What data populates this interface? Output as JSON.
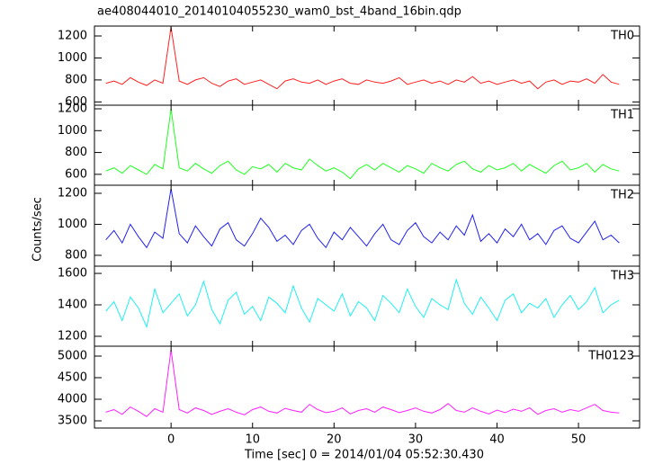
{
  "title": "ae408044010_20140104055230_wam0_bst_4band_16bin.qdp",
  "ylabel": "Counts/sec",
  "xlabel": "Time [sec] 0 = 2014/01/04 05:52:30.430",
  "chart_data": [
    {
      "type": "line",
      "xlim": [
        -9.4,
        57.5
      ],
      "xticks": [
        0,
        10,
        20,
        30,
        40,
        50
      ],
      "ylim": [
        570,
        1290
      ],
      "yticks": [
        600,
        800,
        1000,
        1200
      ],
      "x": [
        -8,
        -7,
        -6,
        -5,
        -4,
        -3,
        -2,
        -1,
        0,
        1,
        2,
        3,
        4,
        5,
        6,
        7,
        8,
        9,
        10,
        11,
        12,
        13,
        14,
        15,
        16,
        17,
        18,
        19,
        20,
        21,
        22,
        23,
        24,
        25,
        26,
        27,
        28,
        29,
        30,
        31,
        32,
        33,
        34,
        35,
        36,
        37,
        38,
        39,
        40,
        41,
        42,
        43,
        44,
        45,
        46,
        47,
        48,
        49,
        50,
        51,
        52,
        53,
        54,
        55
      ],
      "series": [
        {
          "name": "TH0",
          "color": "#ff2020",
          "values": [
            770,
            790,
            760,
            820,
            780,
            750,
            800,
            770,
            1280,
            790,
            760,
            800,
            820,
            770,
            740,
            790,
            810,
            760,
            780,
            800,
            760,
            720,
            790,
            810,
            780,
            770,
            800,
            760,
            790,
            810,
            770,
            760,
            800,
            780,
            770,
            790,
            820,
            760,
            780,
            800,
            770,
            790,
            760,
            800,
            780,
            830,
            770,
            790,
            760,
            780,
            800,
            770,
            790,
            720,
            780,
            800,
            760,
            790,
            780,
            810,
            770,
            850,
            780,
            760
          ]
        }
      ]
    },
    {
      "type": "line",
      "xlim": [
        -9.4,
        57.5
      ],
      "xticks": [
        0,
        10,
        20,
        30,
        40,
        50
      ],
      "ylim": [
        500,
        1233
      ],
      "yticks": [
        600,
        800,
        1000,
        1200
      ],
      "x": [
        -8,
        -7,
        -6,
        -5,
        -4,
        -3,
        -2,
        -1,
        0,
        1,
        2,
        3,
        4,
        5,
        6,
        7,
        8,
        9,
        10,
        11,
        12,
        13,
        14,
        15,
        16,
        17,
        18,
        19,
        20,
        21,
        22,
        23,
        24,
        25,
        26,
        27,
        28,
        29,
        30,
        31,
        32,
        33,
        34,
        35,
        36,
        37,
        38,
        39,
        40,
        41,
        42,
        43,
        44,
        45,
        46,
        47,
        48,
        49,
        50,
        51,
        52,
        53,
        54,
        55
      ],
      "series": [
        {
          "name": "TH1",
          "color": "#20ff20",
          "values": [
            630,
            660,
            610,
            680,
            640,
            600,
            690,
            650,
            1200,
            660,
            630,
            700,
            650,
            610,
            680,
            720,
            640,
            600,
            670,
            650,
            690,
            620,
            700,
            660,
            640,
            740,
            680,
            630,
            660,
            620,
            560,
            650,
            690,
            640,
            700,
            660,
            620,
            680,
            650,
            610,
            700,
            660,
            630,
            690,
            720,
            650,
            620,
            680,
            640,
            660,
            700,
            630,
            690,
            650,
            610,
            680,
            720,
            640,
            660,
            700,
            620,
            690,
            650,
            630
          ]
        }
      ]
    },
    {
      "type": "line",
      "xlim": [
        -9.4,
        57.5
      ],
      "xticks": [
        0,
        10,
        20,
        30,
        40,
        50
      ],
      "ylim": [
        730,
        1252
      ],
      "yticks": [
        800,
        1000,
        1200
      ],
      "x": [
        -8,
        -7,
        -6,
        -5,
        -4,
        -3,
        -2,
        -1,
        0,
        1,
        2,
        3,
        4,
        5,
        6,
        7,
        8,
        9,
        10,
        11,
        12,
        13,
        14,
        15,
        16,
        17,
        18,
        19,
        20,
        21,
        22,
        23,
        24,
        25,
        26,
        27,
        28,
        29,
        30,
        31,
        32,
        33,
        34,
        35,
        36,
        37,
        38,
        39,
        40,
        41,
        42,
        43,
        44,
        45,
        46,
        47,
        48,
        49,
        50,
        51,
        52,
        53,
        54,
        55
      ],
      "series": [
        {
          "name": "TH2",
          "color": "#2020ee",
          "values": [
            900,
            960,
            880,
            1000,
            920,
            850,
            950,
            910,
            1230,
            940,
            880,
            990,
            920,
            860,
            970,
            1010,
            900,
            860,
            940,
            1040,
            980,
            890,
            930,
            870,
            960,
            1000,
            910,
            850,
            950,
            900,
            980,
            920,
            860,
            940,
            1000,
            900,
            870,
            960,
            1010,
            920,
            880,
            950,
            900,
            990,
            930,
            1060,
            890,
            940,
            880,
            970,
            920,
            1000,
            900,
            940,
            870,
            960,
            990,
            910,
            880,
            950,
            1020,
            900,
            930,
            880
          ]
        }
      ]
    },
    {
      "type": "line",
      "xlim": [
        -9.4,
        57.5
      ],
      "xticks": [
        0,
        10,
        20,
        30,
        40,
        50
      ],
      "ylim": [
        1137,
        1646
      ],
      "yticks": [
        1200,
        1400,
        1600
      ],
      "x": [
        -8,
        -7,
        -6,
        -5,
        -4,
        -3,
        -2,
        -1,
        0,
        1,
        2,
        3,
        4,
        5,
        6,
        7,
        8,
        9,
        10,
        11,
        12,
        13,
        14,
        15,
        16,
        17,
        18,
        19,
        20,
        21,
        22,
        23,
        24,
        25,
        26,
        27,
        28,
        29,
        30,
        31,
        32,
        33,
        34,
        35,
        36,
        37,
        38,
        39,
        40,
        41,
        42,
        43,
        44,
        45,
        46,
        47,
        48,
        49,
        50,
        51,
        52,
        53,
        54,
        55
      ],
      "series": [
        {
          "name": "TH3",
          "color": "#20f0f0",
          "values": [
            1360,
            1420,
            1300,
            1450,
            1380,
            1260,
            1500,
            1350,
            1410,
            1470,
            1330,
            1400,
            1550,
            1370,
            1280,
            1430,
            1480,
            1340,
            1390,
            1300,
            1450,
            1410,
            1350,
            1520,
            1380,
            1290,
            1440,
            1400,
            1360,
            1470,
            1330,
            1420,
            1380,
            1300,
            1460,
            1410,
            1350,
            1500,
            1390,
            1320,
            1440,
            1400,
            1370,
            1560,
            1410,
            1340,
            1450,
            1380,
            1300,
            1430,
            1470,
            1350,
            1410,
            1380,
            1440,
            1320,
            1400,
            1460,
            1370,
            1420,
            1510,
            1350,
            1400,
            1430
          ]
        }
      ]
    },
    {
      "type": "line",
      "xlim": [
        -9.4,
        57.5
      ],
      "xticks": [
        0,
        10,
        20,
        30,
        40,
        50
      ],
      "ylim": [
        3333,
        5229
      ],
      "yticks": [
        3500,
        4000,
        4500,
        5000
      ],
      "x": [
        -8,
        -7,
        -6,
        -5,
        -4,
        -3,
        -2,
        -1,
        0,
        1,
        2,
        3,
        4,
        5,
        6,
        7,
        8,
        9,
        10,
        11,
        12,
        13,
        14,
        15,
        16,
        17,
        18,
        19,
        20,
        21,
        22,
        23,
        24,
        25,
        26,
        27,
        28,
        29,
        30,
        31,
        32,
        33,
        34,
        35,
        36,
        37,
        38,
        39,
        40,
        41,
        42,
        43,
        44,
        45,
        46,
        47,
        48,
        49,
        50,
        51,
        52,
        53,
        54,
        55
      ],
      "series": [
        {
          "name": "TH0123",
          "color": "#ff20ff",
          "values": [
            3700,
            3760,
            3650,
            3820,
            3720,
            3600,
            3780,
            3700,
            5150,
            3760,
            3680,
            3800,
            3740,
            3650,
            3720,
            3780,
            3700,
            3640,
            3760,
            3820,
            3720,
            3680,
            3790,
            3740,
            3700,
            3880,
            3760,
            3690,
            3720,
            3800,
            3660,
            3740,
            3780,
            3700,
            3820,
            3760,
            3690,
            3740,
            3800,
            3720,
            3680,
            3760,
            3900,
            3740,
            3700,
            3800,
            3720,
            3660,
            3750,
            3690,
            3770,
            3720,
            3800,
            3650,
            3740,
            3780,
            3700,
            3760,
            3720,
            3800,
            3880,
            3740,
            3700,
            3680
          ]
        }
      ],
      "grid": false
    }
  ]
}
